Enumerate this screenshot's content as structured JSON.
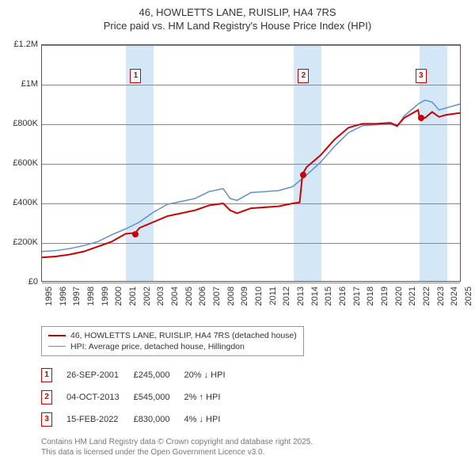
{
  "title_line1": "46, HOWLETTS LANE, RUISLIP, HA4 7RS",
  "title_line2": "Price paid vs. HM Land Registry's House Price Index (HPI)",
  "chart": {
    "type": "line",
    "x_years": [
      1995,
      1996,
      1997,
      1998,
      1999,
      2000,
      2001,
      2002,
      2003,
      2004,
      2005,
      2006,
      2007,
      2008,
      2009,
      2010,
      2011,
      2012,
      2013,
      2014,
      2015,
      2016,
      2017,
      2018,
      2019,
      2020,
      2021,
      2022,
      2023,
      2024,
      2025
    ],
    "ylim": [
      0,
      1200000
    ],
    "y_ticks": [
      0,
      200000,
      400000,
      600000,
      800000,
      1000000,
      1200000
    ],
    "y_tick_labels": [
      "£0",
      "£200K",
      "£400K",
      "£600K",
      "£800K",
      "£1M",
      "£1.2M"
    ],
    "grid_color": "#888",
    "background_color": "#ffffff",
    "band_color": "#cde3f5",
    "bands_x": [
      [
        2001,
        2003
      ],
      [
        2013,
        2015
      ],
      [
        2022,
        2024
      ]
    ],
    "series": [
      {
        "name": "46, HOWLETTS LANE, RUISLIP, HA4 7RS (detached house)",
        "color": "#cc0000",
        "line_width": 2,
        "points": [
          [
            1995,
            120000
          ],
          [
            1996,
            125000
          ],
          [
            1997,
            135000
          ],
          [
            1998,
            150000
          ],
          [
            1999,
            175000
          ],
          [
            2000,
            200000
          ],
          [
            2001,
            240000
          ],
          [
            2001.7,
            245000
          ],
          [
            2002,
            270000
          ],
          [
            2003,
            300000
          ],
          [
            2004,
            330000
          ],
          [
            2005,
            345000
          ],
          [
            2006,
            360000
          ],
          [
            2007,
            385000
          ],
          [
            2008,
            395000
          ],
          [
            2008.5,
            360000
          ],
          [
            2009,
            345000
          ],
          [
            2010,
            370000
          ],
          [
            2011,
            375000
          ],
          [
            2012,
            380000
          ],
          [
            2013,
            395000
          ],
          [
            2013.5,
            400000
          ],
          [
            2013.7,
            545000
          ],
          [
            2014,
            580000
          ],
          [
            2015,
            640000
          ],
          [
            2016,
            720000
          ],
          [
            2017,
            780000
          ],
          [
            2018,
            800000
          ],
          [
            2019,
            800000
          ],
          [
            2020,
            805000
          ],
          [
            2020.5,
            790000
          ],
          [
            2021,
            830000
          ],
          [
            2022,
            870000
          ],
          [
            2022.1,
            830000
          ],
          [
            2022.5,
            830000
          ],
          [
            2023,
            860000
          ],
          [
            2023.5,
            835000
          ],
          [
            2024,
            845000
          ],
          [
            2025,
            855000
          ]
        ]
      },
      {
        "name": "HPI: Average price, detached house, Hillingdon",
        "color": "#5b8fc7",
        "line_width": 1.5,
        "points": [
          [
            1995,
            150000
          ],
          [
            1996,
            155000
          ],
          [
            1997,
            165000
          ],
          [
            1998,
            180000
          ],
          [
            1999,
            200000
          ],
          [
            2000,
            235000
          ],
          [
            2001,
            265000
          ],
          [
            2002,
            300000
          ],
          [
            2003,
            350000
          ],
          [
            2004,
            390000
          ],
          [
            2005,
            405000
          ],
          [
            2006,
            420000
          ],
          [
            2007,
            455000
          ],
          [
            2008,
            470000
          ],
          [
            2008.5,
            420000
          ],
          [
            2009,
            410000
          ],
          [
            2010,
            450000
          ],
          [
            2011,
            455000
          ],
          [
            2012,
            460000
          ],
          [
            2013,
            480000
          ],
          [
            2014,
            540000
          ],
          [
            2015,
            605000
          ],
          [
            2016,
            685000
          ],
          [
            2017,
            755000
          ],
          [
            2018,
            790000
          ],
          [
            2019,
            795000
          ],
          [
            2020,
            800000
          ],
          [
            2020.5,
            785000
          ],
          [
            2021,
            840000
          ],
          [
            2022,
            900000
          ],
          [
            2022.5,
            920000
          ],
          [
            2023,
            910000
          ],
          [
            2023.5,
            870000
          ],
          [
            2024,
            880000
          ],
          [
            2025,
            900000
          ]
        ]
      }
    ],
    "sale_markers": [
      {
        "num": "1",
        "x": 2001.7,
        "y": 245000,
        "box_y": 1080000
      },
      {
        "num": "2",
        "x": 2013.7,
        "y": 545000,
        "box_y": 1080000
      },
      {
        "num": "3",
        "x": 2022.1,
        "y": 830000,
        "box_y": 1080000
      }
    ]
  },
  "legend": {
    "items": [
      {
        "color": "#cc0000",
        "width": 2,
        "label": "46, HOWLETTS LANE, RUISLIP, HA4 7RS (detached house)"
      },
      {
        "color": "#5b8fc7",
        "width": 1.5,
        "label": "HPI: Average price, detached house, Hillingdon"
      }
    ]
  },
  "sales": [
    {
      "num": "1",
      "date": "26-SEP-2001",
      "price": "£245,000",
      "delta": "20% ↓ HPI"
    },
    {
      "num": "2",
      "date": "04-OCT-2013",
      "price": "£545,000",
      "delta": "2% ↑ HPI"
    },
    {
      "num": "3",
      "date": "15-FEB-2022",
      "price": "£830,000",
      "delta": "4% ↓ HPI"
    }
  ],
  "attribution_line1": "Contains HM Land Registry data © Crown copyright and database right 2025.",
  "attribution_line2": "This data is licensed under the Open Government Licence v3.0."
}
